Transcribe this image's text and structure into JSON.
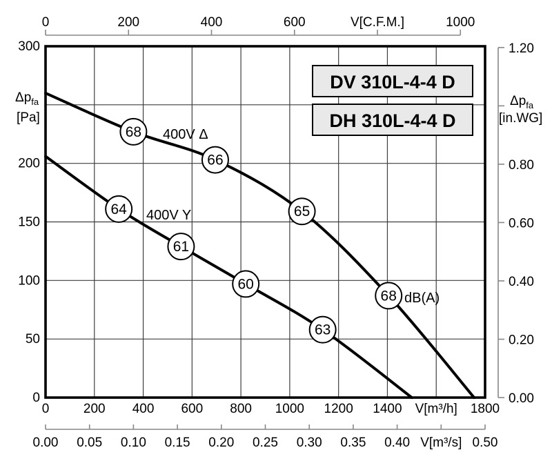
{
  "colors": {
    "ink": "#000000",
    "grid": "#3d3d3d",
    "axis": "#878787",
    "box_fill": "#e9e9e9",
    "circle_fill": "#ffffff",
    "background": "#ffffff"
  },
  "chart_data": {
    "type": "line",
    "title_boxes": [
      "DV 310L-4-4 D",
      "DH 310L-4-4 D"
    ],
    "noise_unit": "dB(A)",
    "grid": "on",
    "x_axis_m3h": {
      "label": "V[m³/h]",
      "min": 0,
      "max": 1800,
      "tick_step": 200,
      "tick_values": [
        0,
        200,
        400,
        600,
        800,
        1000,
        1200,
        1400,
        1600,
        1800
      ],
      "tick_labels": [
        "0",
        "200",
        "400",
        "600",
        "800",
        "1000",
        "1200",
        "1400",
        "V[m³/h]",
        "1800"
      ]
    },
    "x_axis_m3s": {
      "label": "V[m³/s]",
      "min": 0,
      "max": 0.5,
      "tick_step": 0.05,
      "tick_values": [
        0,
        0.05,
        0.1,
        0.15,
        0.2,
        0.25,
        0.3,
        0.35,
        0.4,
        0.45,
        0.5
      ],
      "tick_labels": [
        "0.00",
        "0.05",
        "0.10",
        "0.15",
        "0.20",
        "0.25",
        "0.30",
        "0.35",
        "0.40",
        "V[m³/s]",
        "0.50"
      ]
    },
    "x_axis_cfm": {
      "label": "V[C.F.M.]",
      "min": 0,
      "max": 1000,
      "tick_step": 200,
      "m3h_per_cfm": 1.699,
      "tick_values": [
        0,
        200,
        400,
        600,
        800,
        1000
      ],
      "tick_labels": [
        "0",
        "200",
        "400",
        "600",
        "V[C.F.M.]",
        "1000"
      ]
    },
    "y_axis_pa": {
      "label_symbol": "Δp",
      "label_sub": "fa",
      "label_unit": "[Pa]",
      "min": 0,
      "max": 300,
      "grid_step": 50,
      "tick_values": [
        300,
        200,
        150,
        100,
        50,
        0
      ],
      "tick_labels": [
        "300",
        "200",
        "150",
        "100",
        "50",
        "0"
      ]
    },
    "y_axis_inwg": {
      "label_symbol": "Δp",
      "label_sub": "fa",
      "label_unit": "[in.WG]",
      "min": 0,
      "max": 1.2,
      "pa_per_inwg": 249.1,
      "tick_marks": [
        1.2,
        1.0,
        0.8,
        0.6,
        0.4,
        0.2,
        0.0
      ],
      "tick_values": [
        1.2,
        0.8,
        0.6,
        0.4,
        0.2,
        0.0
      ],
      "tick_labels": [
        "1.20",
        "0.80",
        "0.60",
        "0.40",
        "0.20",
        "0.00"
      ]
    },
    "series": [
      {
        "name": "400V Δ",
        "points": [
          [
            0,
            260
          ],
          [
            360,
            227
          ],
          [
            695,
            203
          ],
          [
            1050,
            159
          ],
          [
            1405,
            87
          ],
          [
            1755,
            0
          ]
        ],
        "noise_points": [
          {
            "label": "68",
            "v": 360,
            "pa": 227
          },
          {
            "label": "66",
            "v": 695,
            "pa": 203
          },
          {
            "label": "65",
            "v": 1050,
            "pa": 159
          },
          {
            "label": "68",
            "v": 1405,
            "pa": 87
          }
        ]
      },
      {
        "name": "400V Y",
        "points": [
          [
            0,
            206
          ],
          [
            300,
            161
          ],
          [
            555,
            129
          ],
          [
            820,
            97
          ],
          [
            1135,
            58
          ],
          [
            1500,
            0
          ]
        ],
        "noise_points": [
          {
            "label": "64",
            "v": 300,
            "pa": 161
          },
          {
            "label": "61",
            "v": 555,
            "pa": 129
          },
          {
            "label": "60",
            "v": 820,
            "pa": 97
          },
          {
            "label": "63",
            "v": 1135,
            "pa": 58
          }
        ]
      }
    ]
  }
}
